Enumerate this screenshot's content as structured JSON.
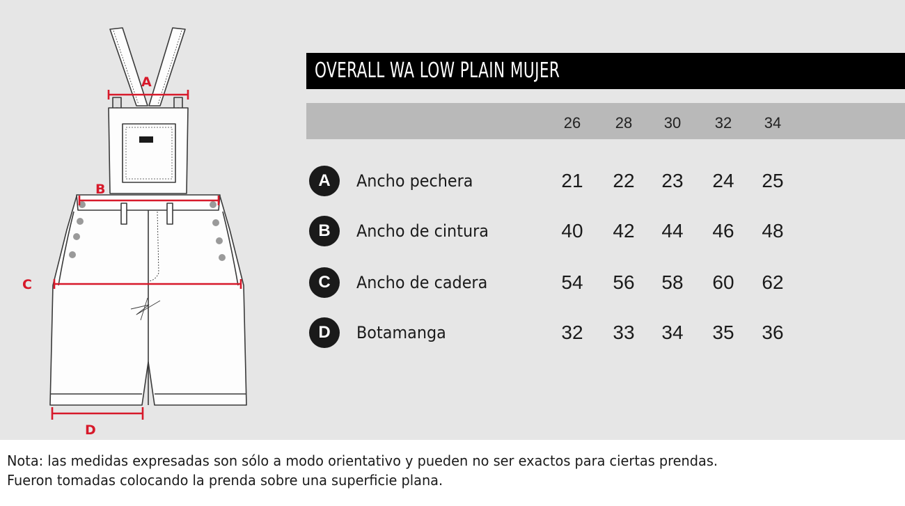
{
  "title": "OVERALL WA LOW PLAIN MUJER",
  "sizes": [
    "26",
    "28",
    "30",
    "32",
    "34"
  ],
  "measurements": [
    {
      "letter": "A",
      "label": "Ancho pechera",
      "values": [
        "21",
        "22",
        "23",
        "24",
        "25"
      ]
    },
    {
      "letter": "B",
      "label": "Ancho de cintura",
      "values": [
        "40",
        "42",
        "44",
        "46",
        "48"
      ]
    },
    {
      "letter": "C",
      "label": "Ancho de cadera",
      "values": [
        "54",
        "56",
        "58",
        "60",
        "62"
      ]
    },
    {
      "letter": "D",
      "label": "Botamanga",
      "values": [
        "32",
        "33",
        "34",
        "35",
        "36"
      ]
    }
  ],
  "diagram": {
    "labels": [
      "A",
      "B",
      "C",
      "D"
    ],
    "measure_color": "#d7192a"
  },
  "note": {
    "line1": "Nota: las medidas expresadas son sólo a modo orientativo y pueden no ser exactos para ciertas prendas.",
    "line2": "Fueron tomadas colocando la prenda sobre una superficie plana."
  },
  "colors": {
    "background": "#e6e6e6",
    "title_bar": "#000000",
    "size_bar": "#b9b9b9",
    "badge": "#1a1a1a"
  }
}
